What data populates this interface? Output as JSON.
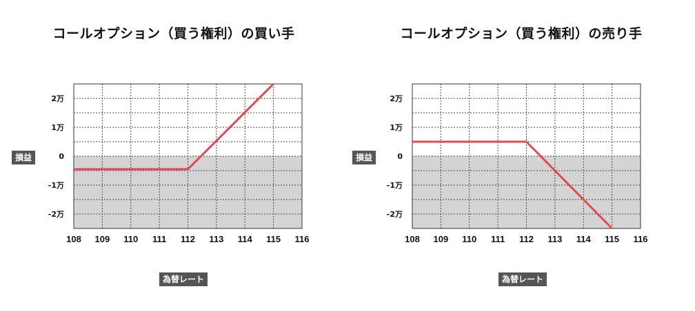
{
  "chart_data": [
    {
      "type": "line",
      "title": "コールオプション（買う権利）の買い手",
      "xlabel": "為替レート",
      "ylabel": "損益",
      "xlim": [
        108,
        116
      ],
      "ylim": [
        -2.5,
        2.5
      ],
      "x_ticks": [
        108,
        109,
        110,
        111,
        112,
        113,
        114,
        115,
        116
      ],
      "x_tick_labels": [
        "108",
        "109",
        "110",
        "111",
        "112",
        "113",
        "114",
        "115",
        "116"
      ],
      "y_ticks": [
        2,
        1,
        0,
        -1,
        -2
      ],
      "y_tick_labels": [
        "2万",
        "1万",
        "0",
        "-1万",
        "-2万"
      ],
      "loss_region": [
        -2.5,
        0
      ],
      "grid": true,
      "series": [
        {
          "color": "#e8474e",
          "x": [
            108,
            112,
            115
          ],
          "y": [
            -0.45,
            -0.45,
            2.5
          ]
        }
      ]
    },
    {
      "type": "line",
      "title": "コールオプション（買う権利）の売り手",
      "xlabel": "為替レート",
      "ylabel": "損益",
      "xlim": [
        108,
        116
      ],
      "ylim": [
        -2.5,
        2.5
      ],
      "x_ticks": [
        108,
        109,
        110,
        111,
        112,
        113,
        114,
        115,
        116
      ],
      "x_tick_labels": [
        "108",
        "109",
        "110",
        "111",
        "112",
        "113",
        "114",
        "115",
        "116"
      ],
      "y_ticks": [
        2,
        1,
        0,
        -1,
        -2
      ],
      "y_tick_labels": [
        "2万",
        "1万",
        "0",
        "-1万",
        "-2万"
      ],
      "loss_region": [
        -2.5,
        0
      ],
      "grid": true,
      "series": [
        {
          "color": "#e8474e",
          "x": [
            108,
            112,
            115
          ],
          "y": [
            0.5,
            0.5,
            -2.5
          ]
        }
      ]
    }
  ]
}
